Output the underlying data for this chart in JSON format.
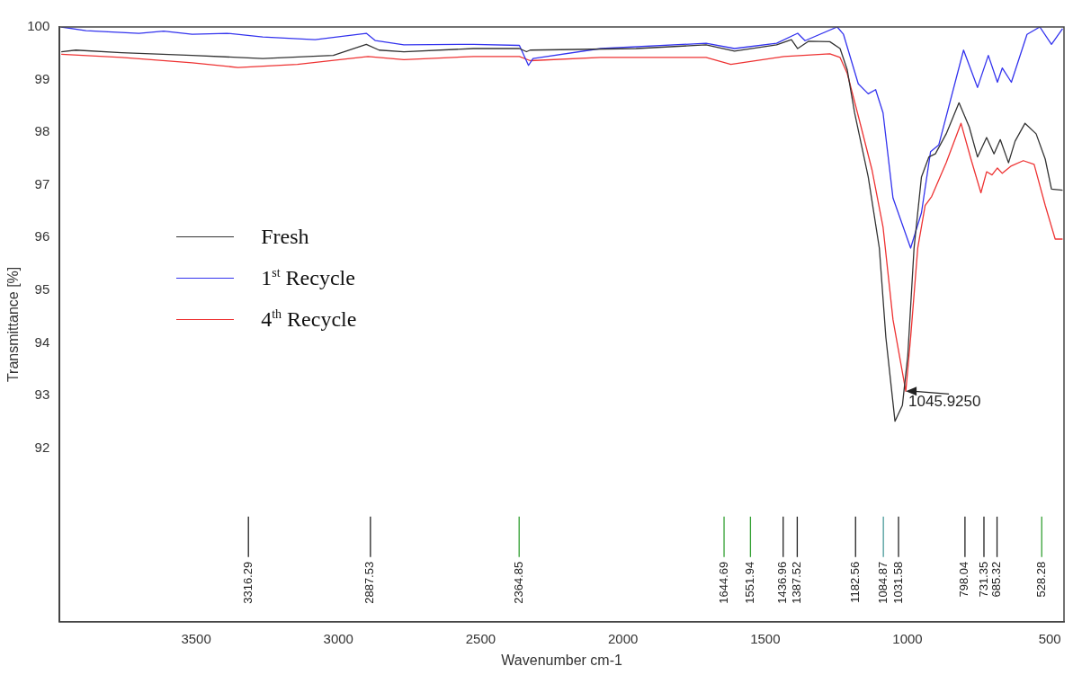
{
  "chart_data": {
    "type": "line",
    "xlabel": "Wavenumber cm-1",
    "ylabel": "Transmittance [%]",
    "xlim": [
      3980,
      450
    ],
    "xticks": [
      3500,
      3000,
      2500,
      2000,
      1500,
      1000,
      500
    ],
    "ylim": [
      88.7,
      100
    ],
    "yticks": [
      92,
      93,
      94,
      95,
      96,
      97,
      98,
      99,
      100
    ],
    "grid": false,
    "legend": "left",
    "marker": "none",
    "line_style": "solid",
    "series": [
      {
        "name": "Fresh",
        "color": "#333333",
        "x": [
          3974,
          3923,
          3762,
          3514,
          3266,
          3018,
          2902,
          2857,
          2770,
          2525,
          2364,
          2339,
          2326,
          1954,
          1708,
          1608,
          1460,
          1408,
          1386,
          1347,
          1273,
          1237,
          1212,
          1186,
          1138,
          1099,
          1076,
          1044,
          1018,
          999,
          977,
          951,
          925,
          902,
          864,
          819,
          783,
          754,
          722,
          696,
          674,
          645,
          622,
          587,
          548,
          516,
          494,
          455
        ],
        "values": [
          99.53,
          99.56,
          99.51,
          99.46,
          99.4,
          99.46,
          99.67,
          99.56,
          99.53,
          99.59,
          99.59,
          99.53,
          99.56,
          99.59,
          99.66,
          99.54,
          99.66,
          99.76,
          99.59,
          99.73,
          99.72,
          99.59,
          99.19,
          98.37,
          97.15,
          95.8,
          94.1,
          92.51,
          92.81,
          93.76,
          95.8,
          97.15,
          97.53,
          97.59,
          97.97,
          98.56,
          98.1,
          97.53,
          97.9,
          97.59,
          97.86,
          97.42,
          97.83,
          98.17,
          97.97,
          97.49,
          96.92,
          96.9
        ]
      },
      {
        "name": "1$^{st}$ Recycle",
        "color": "#3333ee",
        "x": [
          3974,
          3887,
          3701,
          3614,
          3514,
          3392,
          3266,
          3082,
          3018,
          2902,
          2870,
          2770,
          2525,
          2364,
          2332,
          2316,
          2078,
          1708,
          1608,
          1460,
          1386,
          1360,
          1247,
          1225,
          1173,
          1138,
          1112,
          1086,
          1051,
          989,
          951,
          919,
          890,
          803,
          754,
          716,
          684,
          667,
          635,
          580,
          535,
          494,
          455
        ],
        "values": [
          100,
          99.93,
          99.88,
          99.92,
          99.86,
          99.88,
          99.81,
          99.76,
          99.8,
          99.88,
          99.74,
          99.66,
          99.67,
          99.65,
          99.27,
          99.4,
          99.59,
          99.69,
          99.59,
          99.69,
          99.88,
          99.74,
          100,
          99.86,
          98.92,
          98.73,
          98.81,
          98.37,
          96.75,
          95.8,
          96.47,
          97.63,
          97.76,
          99.56,
          98.85,
          99.46,
          98.95,
          99.22,
          98.95,
          99.86,
          100,
          99.67,
          99.97
        ]
      },
      {
        "name": "4$^{th}$ Recycle",
        "color": "#ee3333",
        "x": [
          3974,
          3762,
          3514,
          3353,
          3144,
          2896,
          2770,
          2525,
          2364,
          2326,
          2078,
          1708,
          1621,
          1434,
          1273,
          1237,
          1212,
          1173,
          1125,
          1086,
          1051,
          1006,
          989,
          964,
          938,
          915,
          864,
          812,
          777,
          742,
          722,
          703,
          684,
          667,
          635,
          593,
          555,
          516,
          481,
          455
        ],
        "values": [
          99.48,
          99.42,
          99.32,
          99.23,
          99.29,
          99.44,
          99.38,
          99.44,
          99.44,
          99.36,
          99.42,
          99.42,
          99.29,
          99.44,
          99.49,
          99.42,
          99.12,
          98.31,
          97.29,
          96.2,
          94.44,
          93.08,
          94.1,
          95.8,
          96.61,
          96.78,
          97.42,
          98.17,
          97.49,
          96.85,
          97.25,
          97.19,
          97.32,
          97.22,
          97.36,
          97.46,
          97.39,
          96.61,
          95.97,
          95.97
        ]
      }
    ],
    "ref_lines": [
      {
        "axis": "x",
        "value": 3316.29,
        "label": "3316.29",
        "color": "#222222"
      },
      {
        "axis": "x",
        "value": 2887.53,
        "label": "2887.53",
        "color": "#222222"
      },
      {
        "axis": "x",
        "value": 2364.85,
        "label": "2364.85",
        "color": "#33a033"
      },
      {
        "axis": "x",
        "value": 1644.69,
        "label": "1644.69",
        "color": "#33a033"
      },
      {
        "axis": "x",
        "value": 1551.94,
        "label": "1551.94",
        "color": "#33a033"
      },
      {
        "axis": "x",
        "value": 1436.96,
        "label": "1436.96",
        "color": "#222222"
      },
      {
        "axis": "x",
        "value": 1387.52,
        "label": "1387.52",
        "color": "#222222"
      },
      {
        "axis": "x",
        "value": 1182.56,
        "label": "1182.56",
        "color": "#222222"
      },
      {
        "axis": "x",
        "value": 1084.87,
        "label": "1084.87",
        "color": "#4a9a9a"
      },
      {
        "axis": "x",
        "value": 1031.58,
        "label": "1031.58",
        "color": "#222222"
      },
      {
        "axis": "x",
        "value": 798.04,
        "label": "798.04",
        "color": "#222222"
      },
      {
        "axis": "x",
        "value": 731.35,
        "label": "731.35",
        "color": "#222222"
      },
      {
        "axis": "x",
        "value": 685.32,
        "label": "685.32",
        "color": "#222222"
      },
      {
        "axis": "x",
        "value": 528.28,
        "label": "528.28",
        "color": "#33a033"
      }
    ],
    "annotations": [
      {
        "text": "1045.9250",
        "x": 1006,
        "y": 93.08
      }
    ]
  }
}
